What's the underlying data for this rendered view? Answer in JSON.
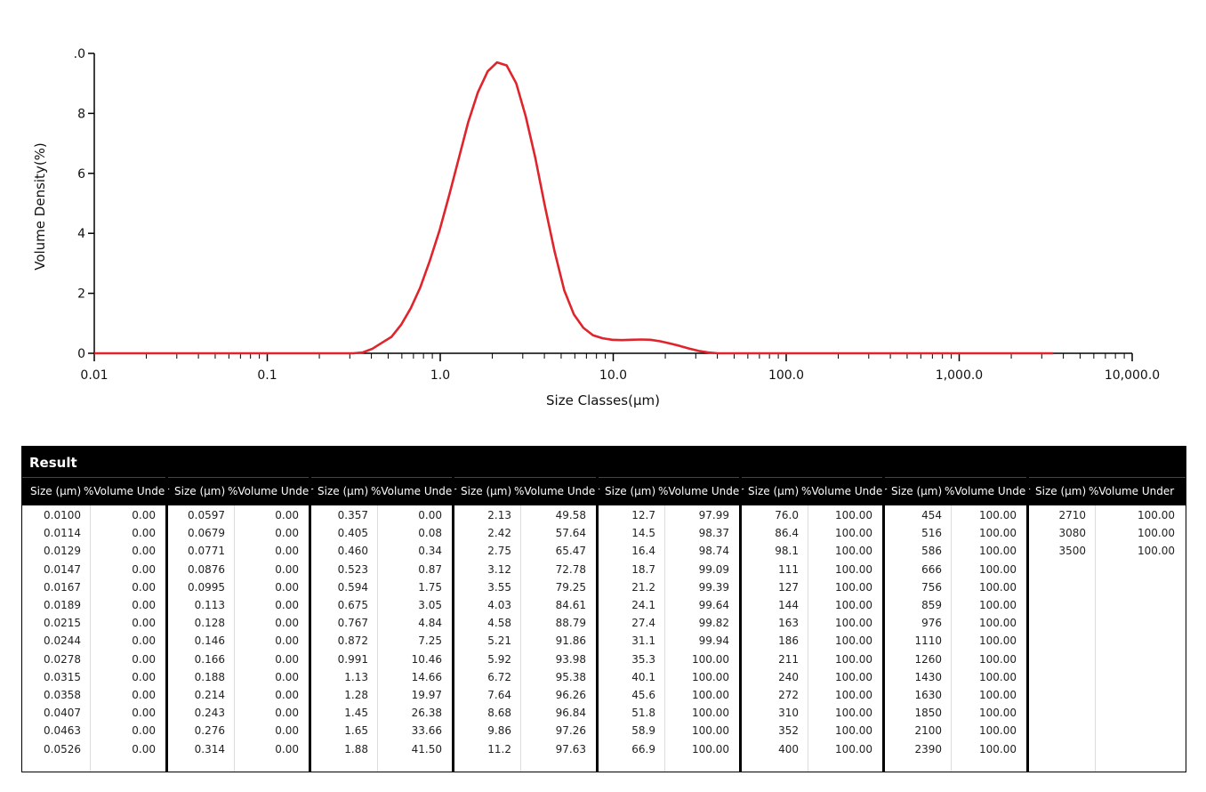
{
  "chart_data": {
    "type": "line",
    "xlabel": "Size Classes(μm)",
    "ylabel": "Volume Density(%)",
    "xscale": "log",
    "xlim": [
      0.01,
      10000
    ],
    "ylim": [
      0,
      10
    ],
    "xticks": [
      0.01,
      0.1,
      {
        "value": 1,
        "label": "1.0"
      },
      {
        "value": 10,
        "label": "10.0"
      },
      {
        "value": 100,
        "label": "100.0"
      },
      {
        "value": 1000,
        "label": "1,000.0"
      },
      {
        "value": 10000,
        "label": "10,000.0"
      }
    ],
    "yticks": [
      0,
      2,
      4,
      6,
      8,
      {
        "value": 10,
        "label": ".0"
      }
    ],
    "color": "#e0242b",
    "x": [
      0.01,
      0.314,
      0.357,
      0.405,
      0.46,
      0.523,
      0.594,
      0.675,
      0.767,
      0.872,
      0.991,
      1.13,
      1.28,
      1.45,
      1.65,
      1.88,
      2.13,
      2.42,
      2.75,
      3.12,
      3.55,
      4.03,
      4.58,
      5.21,
      5.92,
      6.72,
      7.64,
      8.68,
      9.86,
      11.2,
      12.7,
      14.5,
      16.4,
      18.7,
      21.2,
      24.1,
      27.4,
      31.1,
      35.3,
      40.1,
      3500
    ],
    "values": [
      0,
      0,
      0.03,
      0.15,
      0.35,
      0.55,
      0.95,
      1.5,
      2.2,
      3.1,
      4.1,
      5.3,
      6.5,
      7.7,
      8.7,
      9.4,
      9.7,
      9.6,
      9.0,
      7.9,
      6.5,
      4.9,
      3.4,
      2.1,
      1.3,
      0.85,
      0.6,
      0.5,
      0.45,
      0.44,
      0.45,
      0.46,
      0.45,
      0.4,
      0.33,
      0.25,
      0.16,
      0.08,
      0.03,
      0,
      0
    ]
  },
  "table": {
    "title": "Result",
    "columns": [
      "Size (μm)",
      "%Volume Under"
    ],
    "groups": [
      {
        "rows": [
          [
            "0.0100",
            "0.00"
          ],
          [
            "0.0114",
            "0.00"
          ],
          [
            "0.0129",
            "0.00"
          ],
          [
            "0.0147",
            "0.00"
          ],
          [
            "0.0167",
            "0.00"
          ],
          [
            "0.0189",
            "0.00"
          ],
          [
            "0.0215",
            "0.00"
          ],
          [
            "0.0244",
            "0.00"
          ],
          [
            "0.0278",
            "0.00"
          ],
          [
            "0.0315",
            "0.00"
          ],
          [
            "0.0358",
            "0.00"
          ],
          [
            "0.0407",
            "0.00"
          ],
          [
            "0.0463",
            "0.00"
          ],
          [
            "0.0526",
            "0.00"
          ]
        ]
      },
      {
        "rows": [
          [
            "0.0597",
            "0.00"
          ],
          [
            "0.0679",
            "0.00"
          ],
          [
            "0.0771",
            "0.00"
          ],
          [
            "0.0876",
            "0.00"
          ],
          [
            "0.0995",
            "0.00"
          ],
          [
            "0.113",
            "0.00"
          ],
          [
            "0.128",
            "0.00"
          ],
          [
            "0.146",
            "0.00"
          ],
          [
            "0.166",
            "0.00"
          ],
          [
            "0.188",
            "0.00"
          ],
          [
            "0.214",
            "0.00"
          ],
          [
            "0.243",
            "0.00"
          ],
          [
            "0.276",
            "0.00"
          ],
          [
            "0.314",
            "0.00"
          ]
        ]
      },
      {
        "rows": [
          [
            "0.357",
            "0.00"
          ],
          [
            "0.405",
            "0.08"
          ],
          [
            "0.460",
            "0.34"
          ],
          [
            "0.523",
            "0.87"
          ],
          [
            "0.594",
            "1.75"
          ],
          [
            "0.675",
            "3.05"
          ],
          [
            "0.767",
            "4.84"
          ],
          [
            "0.872",
            "7.25"
          ],
          [
            "0.991",
            "10.46"
          ],
          [
            "1.13",
            "14.66"
          ],
          [
            "1.28",
            "19.97"
          ],
          [
            "1.45",
            "26.38"
          ],
          [
            "1.65",
            "33.66"
          ],
          [
            "1.88",
            "41.50"
          ]
        ]
      },
      {
        "rows": [
          [
            "2.13",
            "49.58"
          ],
          [
            "2.42",
            "57.64"
          ],
          [
            "2.75",
            "65.47"
          ],
          [
            "3.12",
            "72.78"
          ],
          [
            "3.55",
            "79.25"
          ],
          [
            "4.03",
            "84.61"
          ],
          [
            "4.58",
            "88.79"
          ],
          [
            "5.21",
            "91.86"
          ],
          [
            "5.92",
            "93.98"
          ],
          [
            "6.72",
            "95.38"
          ],
          [
            "7.64",
            "96.26"
          ],
          [
            "8.68",
            "96.84"
          ],
          [
            "9.86",
            "97.26"
          ],
          [
            "11.2",
            "97.63"
          ]
        ]
      },
      {
        "rows": [
          [
            "12.7",
            "97.99"
          ],
          [
            "14.5",
            "98.37"
          ],
          [
            "16.4",
            "98.74"
          ],
          [
            "18.7",
            "99.09"
          ],
          [
            "21.2",
            "99.39"
          ],
          [
            "24.1",
            "99.64"
          ],
          [
            "27.4",
            "99.82"
          ],
          [
            "31.1",
            "99.94"
          ],
          [
            "35.3",
            "100.00"
          ],
          [
            "40.1",
            "100.00"
          ],
          [
            "45.6",
            "100.00"
          ],
          [
            "51.8",
            "100.00"
          ],
          [
            "58.9",
            "100.00"
          ],
          [
            "66.9",
            "100.00"
          ]
        ]
      },
      {
        "rows": [
          [
            "76.0",
            "100.00"
          ],
          [
            "86.4",
            "100.00"
          ],
          [
            "98.1",
            "100.00"
          ],
          [
            "111",
            "100.00"
          ],
          [
            "127",
            "100.00"
          ],
          [
            "144",
            "100.00"
          ],
          [
            "163",
            "100.00"
          ],
          [
            "186",
            "100.00"
          ],
          [
            "211",
            "100.00"
          ],
          [
            "240",
            "100.00"
          ],
          [
            "272",
            "100.00"
          ],
          [
            "310",
            "100.00"
          ],
          [
            "352",
            "100.00"
          ],
          [
            "400",
            "100.00"
          ]
        ]
      },
      {
        "rows": [
          [
            "454",
            "100.00"
          ],
          [
            "516",
            "100.00"
          ],
          [
            "586",
            "100.00"
          ],
          [
            "666",
            "100.00"
          ],
          [
            "756",
            "100.00"
          ],
          [
            "859",
            "100.00"
          ],
          [
            "976",
            "100.00"
          ],
          [
            "1110",
            "100.00"
          ],
          [
            "1260",
            "100.00"
          ],
          [
            "1430",
            "100.00"
          ],
          [
            "1630",
            "100.00"
          ],
          [
            "1850",
            "100.00"
          ],
          [
            "2100",
            "100.00"
          ],
          [
            "2390",
            "100.00"
          ]
        ]
      },
      {
        "rows": [
          [
            "2710",
            "100.00"
          ],
          [
            "3080",
            "100.00"
          ],
          [
            "3500",
            "100.00"
          ]
        ]
      }
    ]
  }
}
